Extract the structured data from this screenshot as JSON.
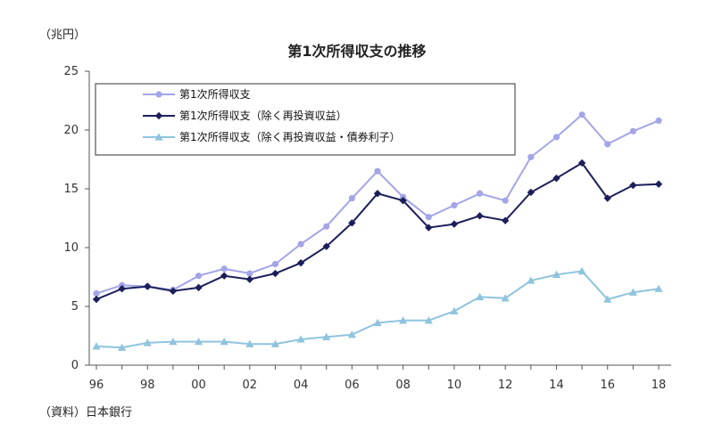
{
  "unit_label": "（兆円）",
  "source_label": "（資料）日本銀行",
  "chart_data": {
    "type": "line",
    "title": "第1次所得収支の推移",
    "xlabel": "",
    "ylabel": "",
    "x_tick_labels": [
      "96",
      "98",
      "00",
      "02",
      "04",
      "06",
      "08",
      "10",
      "12",
      "14",
      "16",
      "18"
    ],
    "y_tick_labels": [
      "0",
      "5",
      "10",
      "15",
      "20",
      "25"
    ],
    "ylim": [
      0,
      25
    ],
    "x": [
      1996,
      1997,
      1998,
      1999,
      2000,
      2001,
      2002,
      2003,
      2004,
      2005,
      2006,
      2007,
      2008,
      2009,
      2010,
      2011,
      2012,
      2013,
      2014,
      2015,
      2016,
      2017,
      2018
    ],
    "legend_position": "top-left",
    "grid": false,
    "series": [
      {
        "name": "第1次所得収支",
        "color": "#a3a5e8",
        "marker": "circle",
        "values": [
          6.1,
          6.8,
          6.7,
          6.4,
          7.6,
          8.2,
          7.8,
          8.6,
          10.3,
          11.8,
          14.2,
          16.5,
          14.3,
          12.6,
          13.6,
          14.6,
          14.0,
          17.7,
          19.4,
          21.3,
          18.8,
          19.9,
          20.8
        ]
      },
      {
        "name": "第1次所得収支（除く再投資収益）",
        "color": "#1c1f5a",
        "marker": "diamond",
        "values": [
          5.6,
          6.5,
          6.7,
          6.3,
          6.6,
          7.6,
          7.3,
          7.8,
          8.7,
          10.1,
          12.1,
          14.6,
          14.0,
          11.7,
          12.0,
          12.7,
          12.3,
          14.7,
          15.9,
          17.2,
          14.2,
          15.3,
          15.4
        ]
      },
      {
        "name": "第1次所得収支（除く再投資収益・債券利子）",
        "color": "#8fc4de",
        "marker": "triangle",
        "values": [
          1.6,
          1.5,
          1.9,
          2.0,
          2.0,
          2.0,
          1.8,
          1.8,
          2.2,
          2.4,
          2.6,
          3.6,
          3.8,
          3.8,
          4.6,
          5.8,
          5.7,
          7.2,
          7.7,
          8.0,
          5.6,
          6.2,
          6.5
        ]
      }
    ]
  }
}
